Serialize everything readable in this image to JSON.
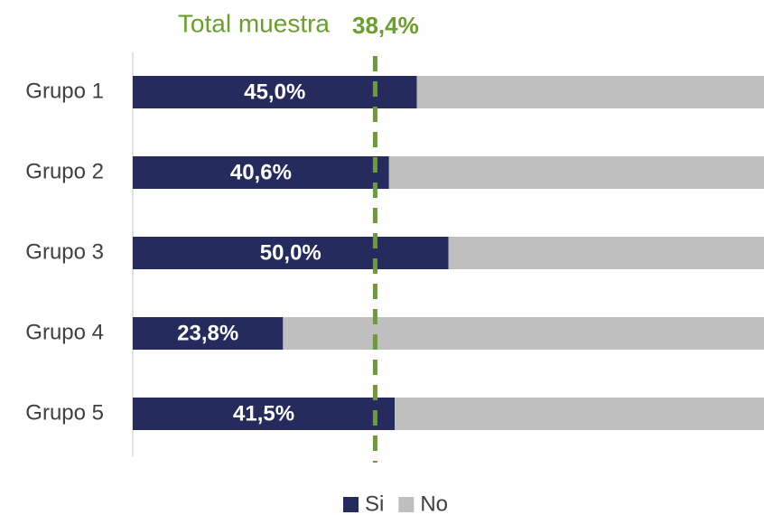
{
  "chart_data": {
    "type": "bar",
    "orientation": "horizontal",
    "stacked": true,
    "categories": [
      "Grupo 1",
      "Grupo 2",
      "Grupo 3",
      "Grupo 4",
      "Grupo 5"
    ],
    "series": [
      {
        "name": "Si",
        "color": "#262b5e",
        "values": [
          45.0,
          40.6,
          50.0,
          23.8,
          41.5
        ],
        "value_labels": [
          "45,0%",
          "40,6%",
          "50,0%",
          "23,8%",
          "41,5%"
        ]
      },
      {
        "name": "No",
        "color": "#bfbfbf",
        "values": [
          55.0,
          59.4,
          50.0,
          76.2,
          58.5
        ]
      }
    ],
    "xlim": [
      0,
      100
    ],
    "reference_line": {
      "label": "Total muestra",
      "value": 38.4,
      "value_label": "38,4%",
      "color": "#6a9f2d"
    },
    "legend": "bottom"
  }
}
